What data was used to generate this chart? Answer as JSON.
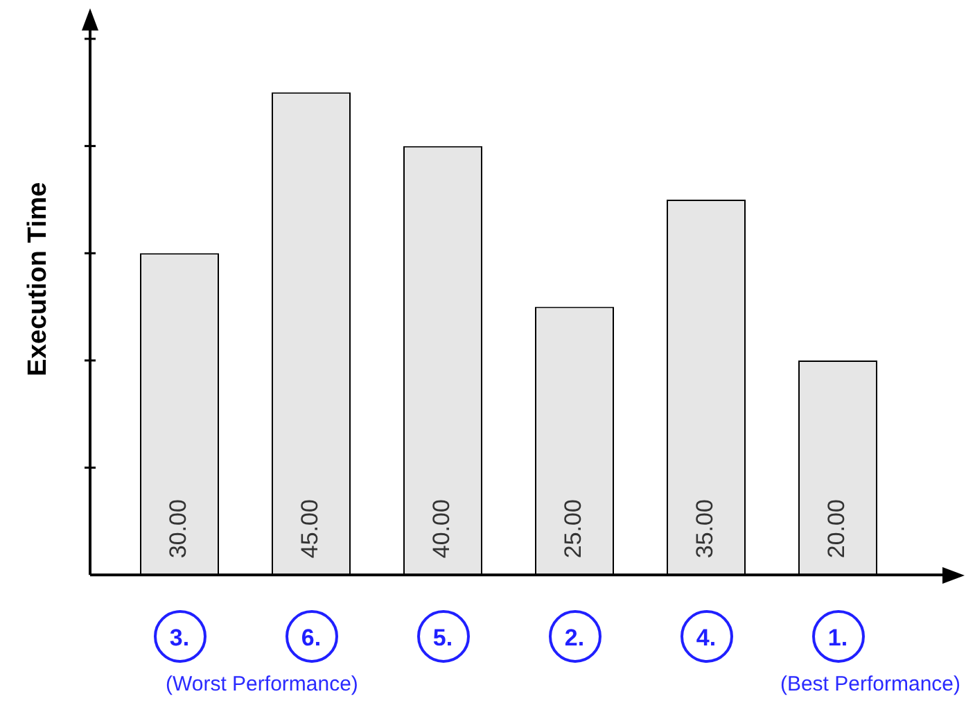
{
  "chart_data": {
    "type": "bar",
    "ylabel": "Execution Time",
    "categories": [
      "3.",
      "6.",
      "5.",
      "2.",
      "4.",
      "1."
    ],
    "values": [
      30,
      45,
      40,
      25,
      35,
      20
    ],
    "value_labels": [
      "30.00",
      "45.00",
      "40.00",
      "25.00",
      "35.00",
      "20.00"
    ],
    "color": "#e6e6e6",
    "grid": false,
    "legend": false,
    "annotations": [
      "(Worst Performance)",
      "(Best Performance)"
    ]
  }
}
